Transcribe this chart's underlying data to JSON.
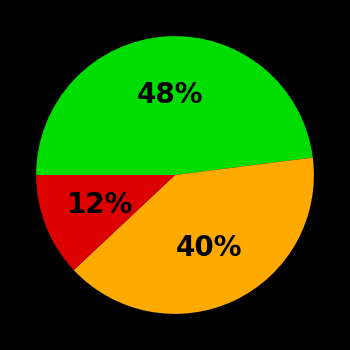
{
  "slices": [
    48,
    40,
    12
  ],
  "colors": [
    "#00dd00",
    "#ffaa00",
    "#dd0000"
  ],
  "labels": [
    "48%",
    "40%",
    "12%"
  ],
  "background_color": "#000000",
  "text_color": "#000000",
  "fontsize": 20,
  "fontweight": "bold",
  "startangle": 180,
  "counterclock": false,
  "label_r": 0.58
}
